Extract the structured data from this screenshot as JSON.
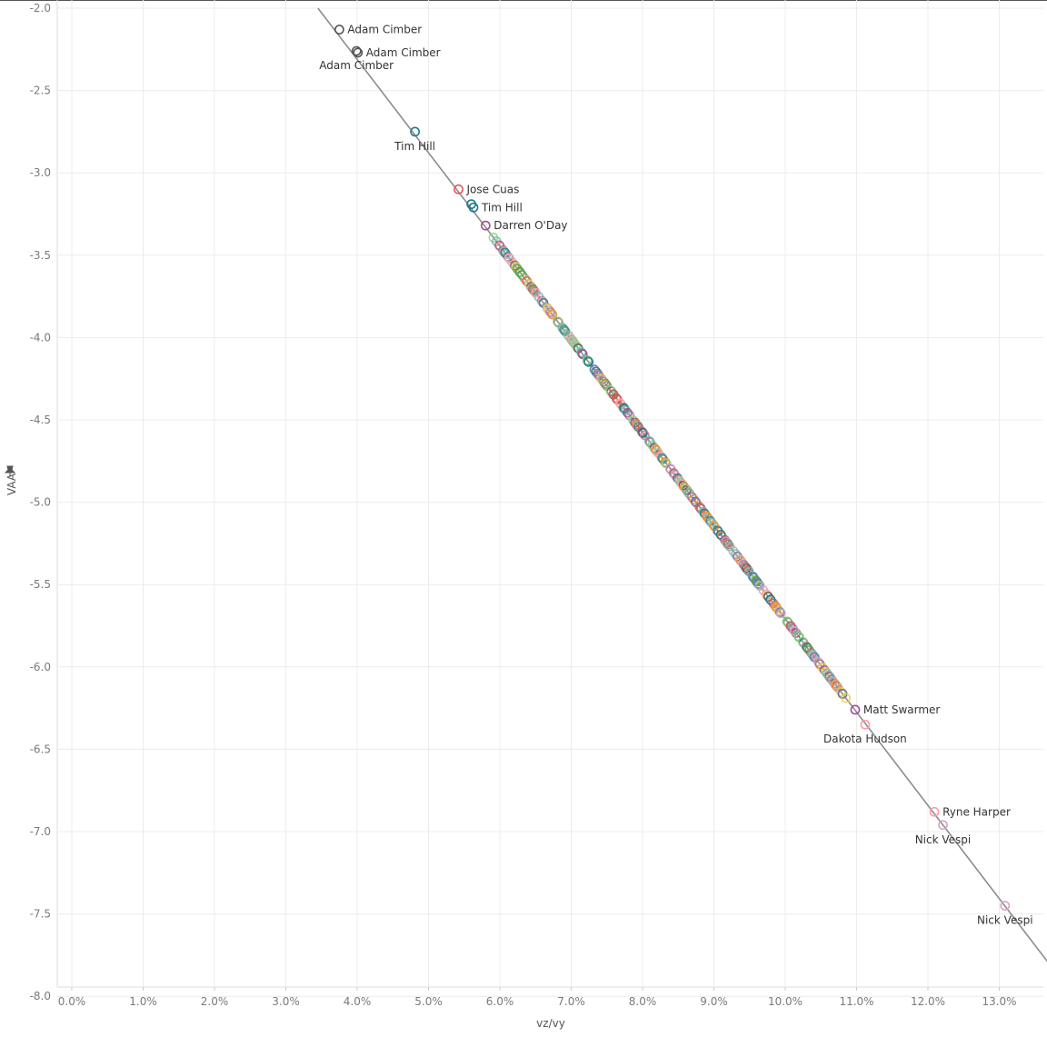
{
  "chart_data": {
    "type": "scatter",
    "title": "",
    "xlabel": "vz/vy",
    "ylabel": "VAA",
    "xlim": [
      -0.002,
      0.138
    ],
    "ylim": [
      -8.05,
      -2.0
    ],
    "x_ticks": [
      0.0,
      0.01,
      0.02,
      0.03,
      0.04,
      0.05,
      0.06,
      0.07,
      0.08,
      0.09,
      0.1,
      0.11,
      0.12,
      0.13
    ],
    "x_tick_labels": [
      "0.0%",
      "1.0%",
      "2.0%",
      "3.0%",
      "4.0%",
      "5.0%",
      "6.0%",
      "7.0%",
      "8.0%",
      "9.0%",
      "10.0%",
      "11.0%",
      "12.0%",
      "13.0%"
    ],
    "y_ticks": [
      -2.0,
      -2.5,
      -3.0,
      -3.5,
      -4.0,
      -4.5,
      -5.0,
      -5.5,
      -6.0,
      -6.5,
      -7.0,
      -7.5,
      -8.0
    ],
    "y_tick_labels": [
      "-2.0",
      "-2.5",
      "-3.0",
      "-3.5",
      "-4.0",
      "-4.5",
      "-5.0",
      "-5.5",
      "-6.0",
      "-6.5",
      "-7.0",
      "-7.5",
      "-8.0"
    ],
    "grid": true,
    "trend_line": {
      "color": "#8c8c8c",
      "from": [
        0.0345,
        -2.0
      ],
      "to": [
        0.138,
        -7.86
      ]
    },
    "palette": [
      "#4e79a7",
      "#f28e2b",
      "#e15759",
      "#76b7b2",
      "#59a14f",
      "#edc948",
      "#b07aa1",
      "#ff9da7",
      "#9c755f",
      "#bab0ac",
      "#1b7c8c",
      "#a05195",
      "#d4a6c8",
      "#8cd17d",
      "#555555"
    ],
    "labeled_points": [
      {
        "label": "Adam Cimber",
        "x": 0.0375,
        "y": -2.13,
        "color": "#555555"
      },
      {
        "label": "Adam Cimber",
        "x": 0.0399,
        "y": -2.26,
        "color": "#555555"
      },
      {
        "label": "Adam Cimber",
        "x": 0.0401,
        "y": -2.27,
        "color": "#555555"
      },
      {
        "label": "Tim Hill",
        "x": 0.0481,
        "y": -2.75,
        "color": "#1b7c8c"
      },
      {
        "label": "Jose Cuas",
        "x": 0.0542,
        "y": -3.1,
        "color": "#e15759"
      },
      {
        "label": "Tim Hill",
        "x": 0.056,
        "y": -3.19,
        "color": "#1b7c8c"
      },
      {
        "label": "Tim Hill",
        "x": 0.0563,
        "y": -3.21,
        "color": "#1b7c8c"
      },
      {
        "label": "Darren O'Day",
        "x": 0.058,
        "y": -3.32,
        "color": "#a05195"
      },
      {
        "label": "Matt Swarmer",
        "x": 0.1098,
        "y": -6.26,
        "color": "#a05195"
      },
      {
        "label": "Dakota Hudson",
        "x": 0.1112,
        "y": -6.35,
        "color": "#ff9da7"
      },
      {
        "label": "Ryne Harper",
        "x": 0.1209,
        "y": -6.88,
        "color": "#ff9da7"
      },
      {
        "label": "Nick Vespi",
        "x": 0.1221,
        "y": -6.96,
        "color": "#d4a6c8"
      },
      {
        "label": "Nick Vespi",
        "x": 0.1308,
        "y": -7.45,
        "color": "#d4a6c8"
      }
    ],
    "point_labels_shown": [
      {
        "text": "Adam Cimber",
        "x": 0.0375,
        "y": -2.13,
        "anchor": "right"
      },
      {
        "text": "Adam Cimber",
        "x": 0.0401,
        "y": -2.27,
        "anchor": "right"
      },
      {
        "text": "Adam Cimber",
        "x": 0.0399,
        "y": -2.26,
        "anchor": "below"
      },
      {
        "text": "Tim Hill",
        "x": 0.0481,
        "y": -2.75,
        "anchor": "below"
      },
      {
        "text": "Jose Cuas",
        "x": 0.0542,
        "y": -3.1,
        "anchor": "right"
      },
      {
        "text": "Tim Hill",
        "x": 0.0563,
        "y": -3.21,
        "anchor": "right"
      },
      {
        "text": "Darren O'Day",
        "x": 0.058,
        "y": -3.32,
        "anchor": "right"
      },
      {
        "text": "Matt Swarmer",
        "x": 0.1098,
        "y": -6.26,
        "anchor": "right"
      },
      {
        "text": "Dakota Hudson",
        "x": 0.1112,
        "y": -6.35,
        "anchor": "below"
      },
      {
        "text": "Ryne Harper",
        "x": 0.1209,
        "y": -6.88,
        "anchor": "right"
      },
      {
        "text": "Nick Vespi",
        "x": 0.1221,
        "y": -6.96,
        "anchor": "below"
      },
      {
        "text": "Nick Vespi",
        "x": 0.1308,
        "y": -7.45,
        "anchor": "below"
      }
    ],
    "dense_band": {
      "x_from": 0.0595,
      "x_to": 0.1085,
      "count": 260,
      "slope": -5.6
    }
  }
}
